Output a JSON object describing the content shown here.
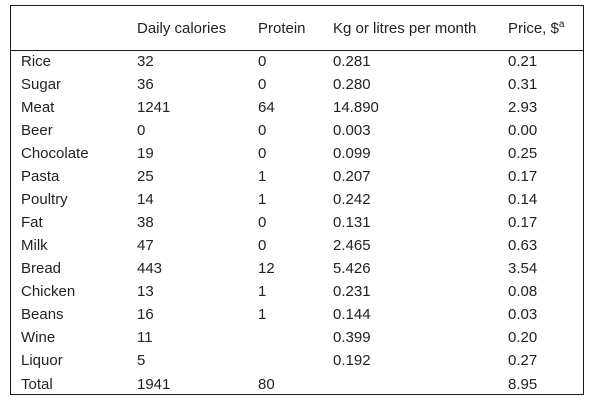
{
  "table": {
    "headers": [
      "",
      "Daily calories",
      "Protein",
      "Kg or litres per month",
      "Price, $"
    ],
    "price_footnote_marker": "a",
    "rows": [
      [
        "Rice",
        "32",
        "0",
        "0.281",
        "0.21"
      ],
      [
        "Sugar",
        "36",
        "0",
        "0.280",
        "0.31"
      ],
      [
        "Meat",
        "1241",
        "64",
        "14.890",
        "2.93"
      ],
      [
        "Beer",
        "0",
        "0",
        "0.003",
        "0.00"
      ],
      [
        "Chocolate",
        "19",
        "0",
        "0.099",
        "0.25"
      ],
      [
        "Pasta",
        "25",
        "1",
        "0.207",
        "0.17"
      ],
      [
        "Poultry",
        "14",
        "1",
        "0.242",
        "0.14"
      ],
      [
        "Fat",
        "38",
        "0",
        "0.131",
        "0.17"
      ],
      [
        "Milk",
        "47",
        "0",
        "2.465",
        "0.63"
      ],
      [
        "Bread",
        "443",
        "12",
        "5.426",
        "3.54"
      ],
      [
        "Chicken",
        "13",
        "1",
        "0.231",
        "0.08"
      ],
      [
        "Beans",
        "16",
        "1",
        "0.144",
        "0.03"
      ],
      [
        "Wine",
        "11",
        "",
        "0.399",
        "0.20"
      ],
      [
        "Liquor",
        "5",
        "",
        "0.192",
        "0.27"
      ],
      [
        "Total",
        "1941",
        "80",
        "",
        "8.95"
      ]
    ]
  }
}
